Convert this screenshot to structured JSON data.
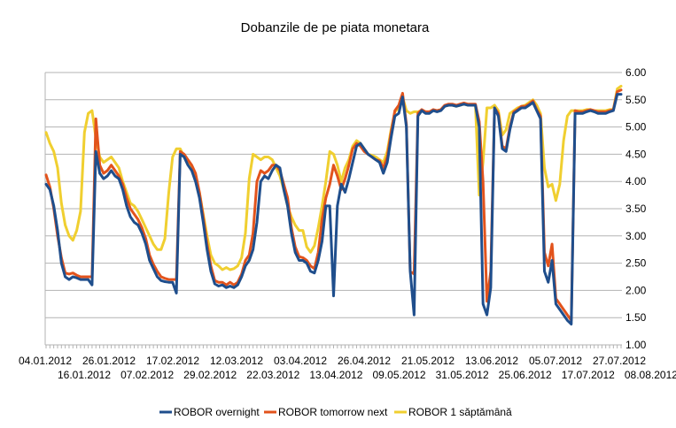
{
  "chart_data": {
    "type": "line",
    "title": "Dobanzile de pe piata monetara",
    "xlabel": "",
    "ylabel": "",
    "y_axis_side": "right",
    "ylim": [
      1.0,
      6.0
    ],
    "y_ticks": [
      "1.00",
      "1.50",
      "2.00",
      "2.50",
      "3.00",
      "3.50",
      "4.00",
      "4.50",
      "5.00",
      "5.50",
      "6.00"
    ],
    "x_tick_labels_upper": [
      "04.01.2012",
      "26.01.2012",
      "17.02.2012",
      "12.03.2012",
      "03.04.2012",
      "26.04.2012",
      "21.05.2012",
      "13.06.2012",
      "05.07.2012",
      "27.07.2012"
    ],
    "x_tick_labels_lower": [
      "16.01.2012",
      "07.02.2012",
      "29.02.2012",
      "22.03.2012",
      "13.04.2012",
      "09.05.2012",
      "31.05.2012",
      "25.06.2012",
      "17.07.2012",
      "08.08.2012"
    ],
    "grid": "horizontal",
    "legend_position": "bottom",
    "series": [
      {
        "name": "ROBOR overnight",
        "color": "#1f4e8c",
        "values": [
          3.95,
          3.85,
          3.55,
          3.1,
          2.5,
          2.25,
          2.2,
          2.25,
          2.23,
          2.2,
          2.2,
          2.2,
          2.1,
          4.55,
          4.15,
          4.05,
          4.1,
          4.2,
          4.1,
          4.05,
          3.85,
          3.55,
          3.35,
          3.25,
          3.2,
          3.05,
          2.85,
          2.55,
          2.4,
          2.25,
          2.18,
          2.16,
          2.15,
          2.15,
          1.95,
          4.5,
          4.45,
          4.3,
          4.2,
          4.0,
          3.7,
          3.25,
          2.75,
          2.35,
          2.12,
          2.08,
          2.1,
          2.05,
          2.08,
          2.05,
          2.1,
          2.25,
          2.45,
          2.55,
          2.75,
          3.25,
          4.0,
          4.1,
          4.05,
          4.2,
          4.3,
          4.25,
          3.85,
          3.55,
          3.05,
          2.7,
          2.55,
          2.55,
          2.5,
          2.35,
          2.32,
          2.55,
          2.9,
          3.55,
          3.55,
          1.9,
          3.55,
          3.95,
          3.8,
          4.05,
          4.35,
          4.65,
          4.7,
          4.6,
          4.5,
          4.45,
          4.4,
          4.35,
          4.15,
          4.35,
          4.8,
          5.2,
          5.25,
          5.55,
          5.0,
          2.35,
          1.55,
          5.2,
          5.3,
          5.25,
          5.25,
          5.3,
          5.28,
          5.3,
          5.38,
          5.4,
          5.4,
          5.38,
          5.4,
          5.42,
          5.4,
          5.4,
          5.4,
          5.0,
          1.75,
          1.55,
          2.05,
          5.35,
          5.2,
          4.6,
          4.55,
          4.95,
          5.25,
          5.3,
          5.35,
          5.35,
          5.4,
          5.45,
          5.3,
          5.15,
          2.35,
          2.15,
          2.55,
          1.75,
          1.65,
          1.55,
          1.45,
          1.38,
          5.25,
          5.25,
          5.25,
          5.28,
          5.3,
          5.28,
          5.25,
          5.25,
          5.25,
          5.28,
          5.3,
          5.6,
          5.6
        ]
      },
      {
        "name": "ROBOR tomorrow next",
        "color": "#e2531c",
        "values": [
          4.12,
          3.9,
          3.5,
          3.0,
          2.6,
          2.32,
          2.3,
          2.32,
          2.28,
          2.25,
          2.25,
          2.25,
          2.25,
          5.15,
          4.3,
          4.15,
          4.2,
          4.3,
          4.2,
          4.1,
          3.95,
          3.7,
          3.5,
          3.4,
          3.3,
          3.15,
          2.95,
          2.65,
          2.48,
          2.35,
          2.25,
          2.22,
          2.2,
          2.2,
          2.2,
          4.55,
          4.5,
          4.4,
          4.3,
          4.15,
          3.8,
          3.35,
          2.85,
          2.45,
          2.18,
          2.15,
          2.15,
          2.1,
          2.15,
          2.1,
          2.15,
          2.3,
          2.55,
          2.65,
          3.05,
          4.0,
          4.2,
          4.15,
          4.2,
          4.3,
          4.3,
          4.2,
          3.95,
          3.7,
          3.15,
          2.8,
          2.62,
          2.6,
          2.55,
          2.45,
          2.4,
          2.7,
          3.3,
          3.7,
          3.95,
          4.3,
          4.1,
          3.85,
          4.05,
          4.3,
          4.6,
          4.7,
          4.65,
          4.55,
          4.5,
          4.45,
          4.4,
          4.38,
          4.25,
          4.45,
          4.9,
          5.3,
          5.4,
          5.62,
          5.05,
          2.35,
          2.3,
          5.25,
          5.32,
          5.28,
          5.28,
          5.32,
          5.3,
          5.32,
          5.4,
          5.42,
          5.42,
          5.4,
          5.42,
          5.44,
          5.42,
          5.42,
          5.42,
          5.1,
          4.0,
          1.8,
          2.35,
          5.35,
          5.25,
          4.65,
          4.6,
          5.0,
          5.28,
          5.32,
          5.38,
          5.38,
          5.42,
          5.48,
          5.32,
          5.2,
          2.7,
          2.45,
          2.85,
          1.85,
          1.75,
          1.65,
          1.55,
          1.45,
          5.3,
          5.28,
          5.28,
          5.3,
          5.32,
          5.3,
          5.28,
          5.28,
          5.28,
          5.3,
          5.32,
          5.65,
          5.68
        ]
      },
      {
        "name": "ROBOR 1 săptămână",
        "color": "#f0cf30",
        "values": [
          4.9,
          4.7,
          4.55,
          4.25,
          3.6,
          3.2,
          3.0,
          2.92,
          3.1,
          3.45,
          4.9,
          5.25,
          5.3,
          4.8,
          4.45,
          4.35,
          4.4,
          4.45,
          4.35,
          4.25,
          4.0,
          3.8,
          3.6,
          3.55,
          3.45,
          3.3,
          3.15,
          3.0,
          2.85,
          2.75,
          2.75,
          2.95,
          3.8,
          4.45,
          4.6,
          4.6,
          4.45,
          4.35,
          4.25,
          4.05,
          3.8,
          3.4,
          3.0,
          2.65,
          2.5,
          2.45,
          2.38,
          2.42,
          2.38,
          2.4,
          2.45,
          2.6,
          3.05,
          4.05,
          4.5,
          4.45,
          4.4,
          4.45,
          4.45,
          4.4,
          4.25,
          4.1,
          3.85,
          3.55,
          3.35,
          3.2,
          3.1,
          3.1,
          2.8,
          2.7,
          2.82,
          3.15,
          3.55,
          4.0,
          4.55,
          4.5,
          4.3,
          4.0,
          4.25,
          4.4,
          4.65,
          4.75,
          4.7,
          4.6,
          4.5,
          4.48,
          4.45,
          4.4,
          4.35,
          4.55,
          4.95,
          5.28,
          5.35,
          5.55,
          5.3,
          5.25,
          5.28,
          5.28,
          5.3,
          5.28,
          5.28,
          5.3,
          5.3,
          5.32,
          5.38,
          5.4,
          5.4,
          5.38,
          5.4,
          5.42,
          5.4,
          5.4,
          5.4,
          3.75,
          4.35,
          5.35,
          5.35,
          5.4,
          5.3,
          4.85,
          4.95,
          5.25,
          5.3,
          5.35,
          5.38,
          5.4,
          5.45,
          5.5,
          5.4,
          5.25,
          4.25,
          3.9,
          3.95,
          3.65,
          3.95,
          4.75,
          5.2,
          5.3,
          5.3,
          5.3,
          5.3,
          5.32,
          5.32,
          5.3,
          5.3,
          5.3,
          5.3,
          5.32,
          5.32,
          5.7,
          5.75
        ]
      }
    ]
  }
}
